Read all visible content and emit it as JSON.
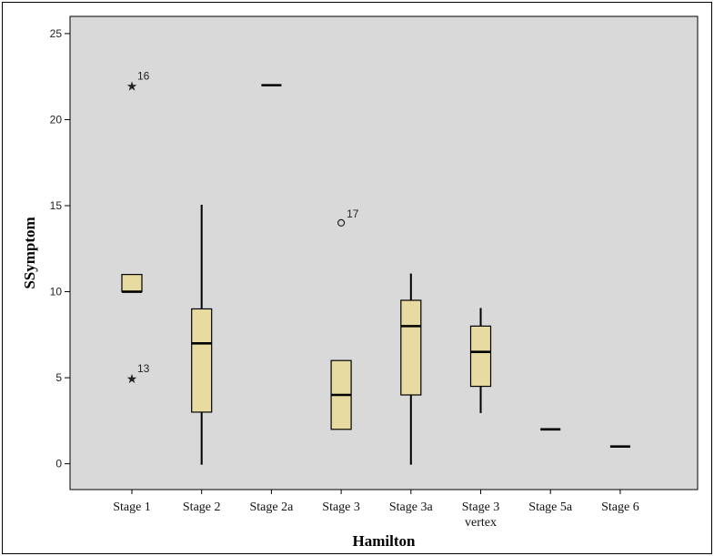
{
  "chart_data": {
    "type": "box",
    "xlabel": "Hamilton",
    "ylabel": "SSymptom",
    "ylim": [
      -1.5,
      26
    ],
    "yticks": [
      0,
      5,
      10,
      15,
      20,
      25
    ],
    "colors": {
      "plot_bg": "#d9d9d9",
      "box_fill": "#e8dba2",
      "line": "#000000"
    },
    "categories": [
      {
        "label": "Stage 1"
      },
      {
        "label": "Stage 2"
      },
      {
        "label": "Stage 2a"
      },
      {
        "label": "Stage 3"
      },
      {
        "label": "Stage 3a"
      },
      {
        "label": "Stage 3",
        "label2": "vertex"
      },
      {
        "label": "Stage 5a"
      },
      {
        "label": "Stage 6"
      }
    ],
    "boxes": [
      {
        "min": 10,
        "q1": 10,
        "median": 10,
        "q3": 11,
        "max": 11,
        "outliers": [
          {
            "value": 22,
            "label": "16",
            "symbol": "star"
          },
          {
            "value": 5,
            "label": "13",
            "symbol": "star"
          }
        ]
      },
      {
        "min": 0,
        "q1": 3,
        "median": 7,
        "q3": 9,
        "max": 15,
        "outliers": []
      },
      {
        "min": 22,
        "q1": 22,
        "median": 22,
        "q3": 22,
        "max": 22,
        "outliers": []
      },
      {
        "min": 2,
        "q1": 2,
        "median": 4,
        "q3": 6,
        "max": 6,
        "outliers": [
          {
            "value": 14,
            "label": "17",
            "symbol": "circle"
          }
        ]
      },
      {
        "min": 0,
        "q1": 4,
        "median": 8,
        "q3": 9.5,
        "max": 11,
        "outliers": []
      },
      {
        "min": 3,
        "q1": 4.5,
        "median": 6.5,
        "q3": 8,
        "max": 9,
        "outliers": []
      },
      {
        "min": 2,
        "q1": 2,
        "median": 2,
        "q3": 2,
        "max": 2,
        "outliers": []
      },
      {
        "min": 1,
        "q1": 1,
        "median": 1,
        "q3": 1,
        "max": 1,
        "outliers": []
      }
    ]
  }
}
